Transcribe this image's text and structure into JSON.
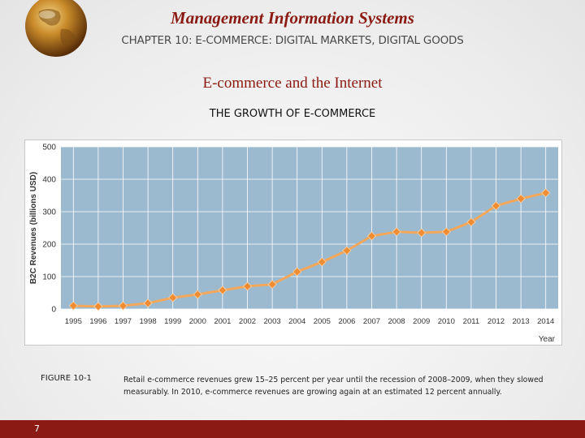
{
  "header": {
    "title": "Management Information Systems",
    "subtitle": "CHAPTER 10: E-COMMERCE: DIGITAL MARKETS, DIGITAL GOODS"
  },
  "slide": {
    "title": "E-commerce and the Internet",
    "section": "THE GROWTH OF E-COMMERCE"
  },
  "figure": {
    "label": "FIGURE 10-1",
    "caption": "Retail e-commerce revenues grew 15–25 percent per year until the recession of 2008–2009, when they slowed measurably. In 2010, e-commerce revenues are growing again at an estimated 12 percent annually."
  },
  "footer": {
    "page_number": "7"
  },
  "colors": {
    "brand": "#8b1a12",
    "plot_bg": "#9bb9cf",
    "line": "#f3a75a",
    "marker": "#f08c32"
  },
  "chart_data": {
    "type": "line",
    "xlabel": "Year",
    "ylabel": "B2C Revenues (billions USD)",
    "ylim": [
      0,
      500
    ],
    "yticks": [
      0,
      100,
      200,
      300,
      400,
      500
    ],
    "grid": true,
    "x": [
      "1995",
      "1996",
      "1997",
      "1998",
      "1999",
      "2000",
      "2001",
      "2002",
      "2003",
      "2004",
      "2005",
      "2006",
      "2007",
      "2008",
      "2009",
      "2010",
      "2011",
      "2012",
      "2013",
      "2014"
    ],
    "series": [
      {
        "values": [
          10,
          8,
          10,
          18,
          35,
          45,
          58,
          70,
          76,
          115,
          145,
          180,
          225,
          238,
          235,
          238,
          268,
          318,
          340,
          358
        ]
      }
    ]
  }
}
